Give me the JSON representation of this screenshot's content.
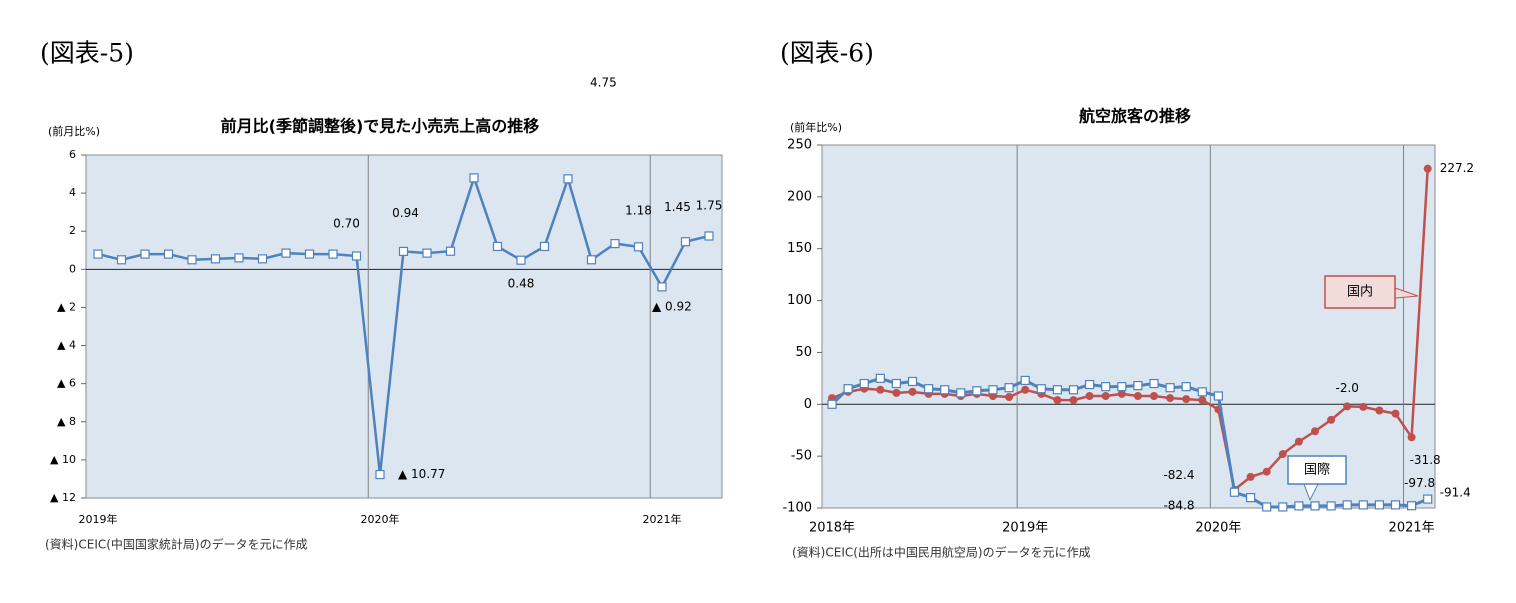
{
  "chart_data": [
    {
      "type": "line",
      "figure_label": "(図表-5)",
      "title": "前月比(季節調整後)で見た小売売上高の推移",
      "y_label": "(前月比%)",
      "source": "(資料)CEIC(中国国家統計局)のデータを元に作成",
      "categories": [
        "2019年",
        null,
        null,
        null,
        null,
        null,
        null,
        null,
        null,
        null,
        null,
        null,
        "2020年",
        null,
        null,
        null,
        null,
        null,
        null,
        null,
        null,
        null,
        null,
        null,
        "2021年",
        null,
        null
      ],
      "ylim": [
        -12,
        6
      ],
      "yticks": [
        6,
        4,
        2,
        0,
        {
          "value": -2,
          "label": "▲ 2"
        },
        {
          "value": -4,
          "label": "▲ 4"
        },
        {
          "value": -6,
          "label": "▲ 6"
        },
        {
          "value": -8,
          "label": "▲ 8"
        },
        {
          "value": -10,
          "label": "▲ 10"
        },
        {
          "value": -12,
          "label": "▲ 12"
        }
      ],
      "series": [
        {
          "color": "#4f81bd",
          "marker": "square",
          "values": [
            0.8,
            0.5,
            0.8,
            0.8,
            0.5,
            0.55,
            0.6,
            0.55,
            0.85,
            0.8,
            0.8,
            0.7,
            -10.77,
            0.94,
            0.85,
            0.95,
            4.8,
            1.2,
            0.48,
            1.2,
            4.75,
            0.5,
            1.35,
            1.18,
            -0.92,
            1.45,
            1.75
          ],
          "value_labels": [
            null,
            null,
            null,
            null,
            null,
            null,
            null,
            null,
            null,
            null,
            null,
            "0.70",
            "▲ 10.77",
            "0.94",
            null,
            null,
            null,
            null,
            "0.48",
            null,
            "4.75",
            null,
            null,
            "1.18",
            "▲ 0.92",
            "1.45",
            "1.75"
          ]
        }
      ]
    },
    {
      "type": "line",
      "figure_label": "(図表-6)",
      "title": "航空旅客の推移",
      "y_label": "(前年比%)",
      "source": "(資料)CEIC(出所は中国民用航空局)のデータを元に作成",
      "categories": [
        "2018年",
        null,
        null,
        null,
        null,
        null,
        null,
        null,
        null,
        null,
        null,
        null,
        "2019年",
        null,
        null,
        null,
        null,
        null,
        null,
        null,
        null,
        null,
        null,
        null,
        "2020年",
        null,
        null,
        null,
        null,
        null,
        null,
        null,
        null,
        null,
        null,
        null,
        "2021年",
        null
      ],
      "ylim": [
        -100,
        250
      ],
      "yticks": [
        250,
        200,
        150,
        100,
        50,
        0,
        -50,
        -100
      ],
      "series": [
        {
          "name": "国内",
          "color": "#c0504d",
          "marker": "circle",
          "values": [
            6,
            12,
            15,
            14,
            11,
            12,
            10,
            10,
            8,
            10,
            8,
            7,
            14,
            10,
            4,
            4,
            8,
            8,
            10,
            8,
            8,
            6,
            5,
            4,
            -5,
            -82.4,
            -70,
            -65,
            -48,
            -36,
            -26,
            -15,
            -2.0,
            -2.5,
            -6,
            -9,
            -31.8,
            227.2
          ],
          "value_labels": [
            null,
            null,
            null,
            null,
            null,
            null,
            null,
            null,
            null,
            null,
            null,
            null,
            null,
            null,
            null,
            null,
            null,
            null,
            null,
            null,
            null,
            null,
            null,
            null,
            null,
            "-82.4",
            null,
            null,
            null,
            null,
            null,
            null,
            "-2.0",
            null,
            null,
            null,
            "-31.8",
            "227.2"
          ]
        },
        {
          "name": "国際",
          "color": "#4f81bd",
          "marker": "square",
          "values": [
            0,
            15,
            20,
            25,
            20,
            22,
            15,
            14,
            11,
            13,
            14,
            16,
            23,
            15,
            14,
            14,
            19,
            17,
            17,
            18,
            20,
            16,
            17,
            12,
            8,
            -84.8,
            -90,
            -99,
            -99,
            -98,
            -98,
            -98,
            -97,
            -97,
            -97,
            -97,
            -97.8,
            -91.4
          ],
          "value_labels": [
            null,
            null,
            null,
            null,
            null,
            null,
            null,
            null,
            null,
            null,
            null,
            null,
            null,
            null,
            null,
            null,
            null,
            null,
            null,
            null,
            null,
            null,
            null,
            null,
            null,
            "-84.8",
            null,
            null,
            null,
            null,
            null,
            null,
            null,
            null,
            null,
            null,
            "-97.8",
            "-91.4"
          ]
        }
      ]
    }
  ]
}
